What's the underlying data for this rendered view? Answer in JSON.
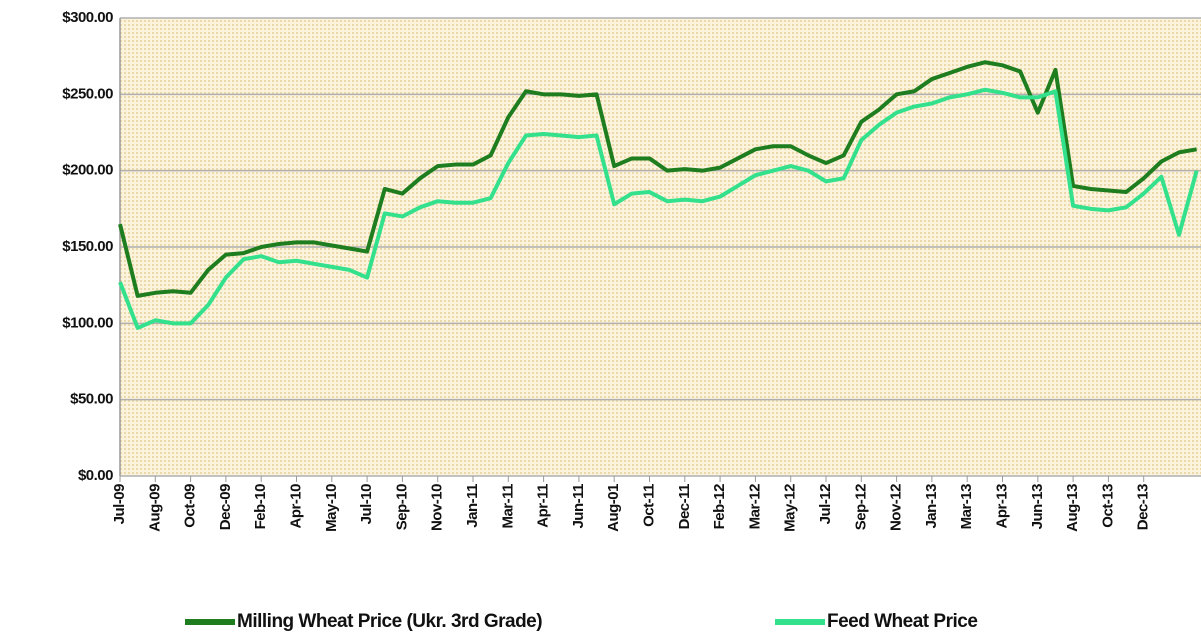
{
  "chart_data": {
    "type": "line",
    "categories": [
      "Jul-09",
      null,
      "Aug-09",
      null,
      "Oct-09",
      null,
      "Dec-09",
      null,
      "Feb-10",
      null,
      "Apr-10",
      null,
      "May-10",
      null,
      "Jul-10",
      null,
      "Sep-10",
      null,
      "Nov-10",
      null,
      "Jan-11",
      null,
      "Mar-11",
      null,
      "Apr-11",
      null,
      "Jun-11",
      null,
      "Aug-01",
      null,
      "Oct-11",
      null,
      "Dec-11",
      null,
      "Feb-12",
      null,
      "Mar-12",
      null,
      "May-12",
      null,
      "Jul-12",
      null,
      "Sep-12",
      null,
      "Nov-12",
      null,
      "Jan-13",
      null,
      "Mar-13",
      null,
      "Apr-13",
      null,
      "Jun-13",
      null,
      "Aug-13",
      null,
      "Oct-13",
      null,
      "Dec-13",
      null,
      null,
      null
    ],
    "series": [
      {
        "name": "Milling Wheat Price (Ukr. 3rd Grade)",
        "color": "#1e7d1e",
        "values": [
          165,
          118,
          120,
          121,
          120,
          135,
          145,
          146,
          150,
          152,
          153,
          153,
          151,
          149,
          147,
          188,
          185,
          195,
          203,
          204,
          204,
          210,
          235,
          252,
          250,
          250,
          249,
          250,
          203,
          208,
          208,
          200,
          201,
          200,
          202,
          208,
          214,
          216,
          216,
          210,
          205,
          210,
          232,
          240,
          250,
          252,
          260,
          264,
          268,
          271,
          269,
          265,
          238,
          266,
          190,
          188,
          187,
          186,
          195,
          206,
          212,
          214
        ]
      },
      {
        "name": "Feed Wheat Price",
        "color": "#33e08c",
        "values": [
          127,
          97,
          102,
          100,
          100,
          112,
          130,
          142,
          144,
          140,
          141,
          139,
          137,
          135,
          130,
          172,
          170,
          176,
          180,
          179,
          179,
          182,
          205,
          223,
          224,
          223,
          222,
          223,
          178,
          185,
          186,
          180,
          181,
          180,
          183,
          190,
          197,
          200,
          203,
          200,
          193,
          195,
          220,
          230,
          238,
          242,
          244,
          248,
          250,
          253,
          251,
          248,
          248,
          252,
          177,
          175,
          174,
          176,
          185,
          196,
          158,
          200
        ]
      }
    ],
    "ylim": [
      0,
      300
    ],
    "yticks": [
      {
        "value": 0,
        "label": "$0.00"
      },
      {
        "value": 50,
        "label": "$50.00"
      },
      {
        "value": 100,
        "label": "$100.00"
      },
      {
        "value": 150,
        "label": "$150.00"
      },
      {
        "value": 200,
        "label": "$200.00"
      },
      {
        "value": 250,
        "label": "$250.00"
      },
      {
        "value": 300,
        "label": "$300.00"
      }
    ],
    "grid": true
  }
}
